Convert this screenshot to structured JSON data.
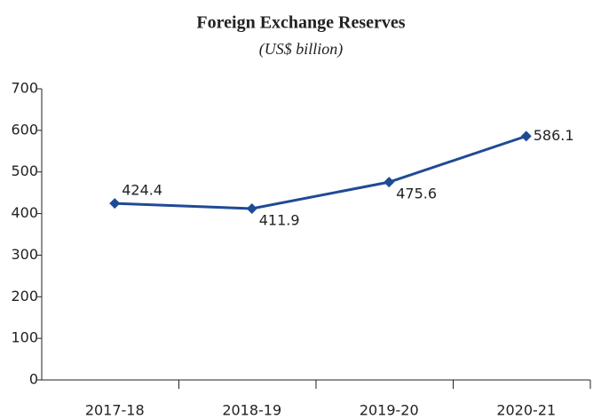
{
  "chart_data": {
    "type": "line",
    "title": "Foreign Exchange Reserves",
    "subtitle": "(US$ billion)",
    "categories": [
      "2017-18",
      "2018-19",
      "2019-20",
      "2020-21"
    ],
    "series": [
      {
        "name": "Foreign Exchange Reserves",
        "color": "#1f4a96",
        "values": [
          424.4,
          411.9,
          475.6,
          586.1
        ]
      }
    ],
    "ylim": [
      0,
      700
    ],
    "yticks": [
      0,
      100,
      200,
      300,
      400,
      500,
      600,
      700
    ],
    "grid": false
  }
}
